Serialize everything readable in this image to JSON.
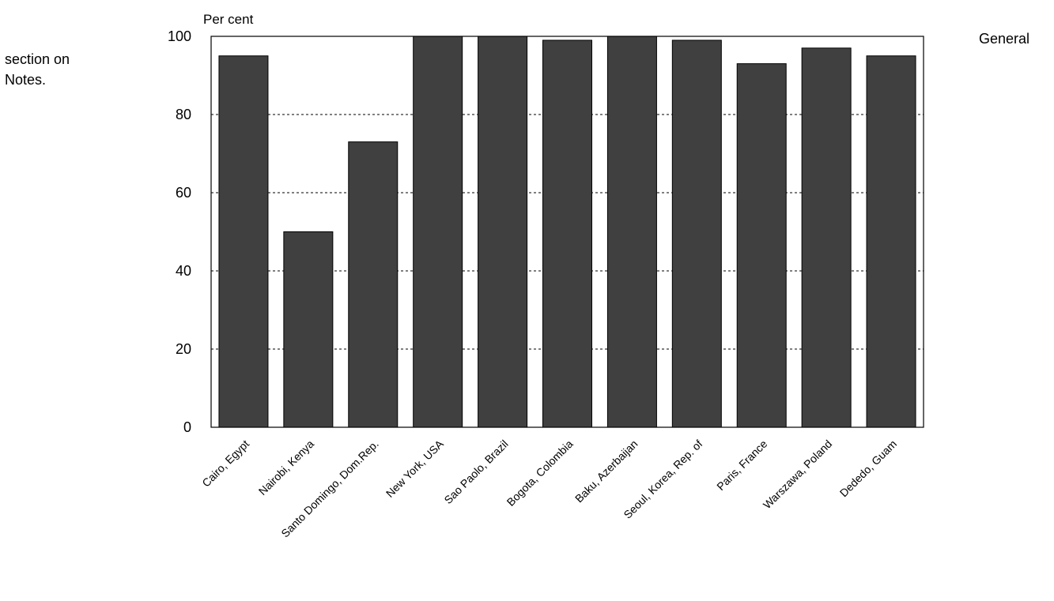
{
  "side_notes": {
    "left_line1": "section on",
    "left_line2": "Notes.",
    "right": "General"
  },
  "chart_data": {
    "type": "bar",
    "ylabel": "Per cent",
    "ylim": [
      0,
      100
    ],
    "yticks": [
      0,
      20,
      40,
      60,
      80,
      100
    ],
    "grid": "horizontal dashed",
    "bar_color": "#404040",
    "categories": [
      "Cairo, Egypt",
      "Nairobi, Kenya",
      "Santo Domingo, Dom.Rep.",
      "New York, USA",
      "Sao Paolo, Brazil",
      "Bogota, Colombia",
      "Baku, Azerbaijan",
      "Seoul, Korea, Rep. of",
      "Paris, France",
      "Warszawa, Poland",
      "Dededo, Guam"
    ],
    "values": [
      95,
      50,
      73,
      100,
      100,
      99,
      100,
      99,
      93,
      97,
      95
    ]
  }
}
